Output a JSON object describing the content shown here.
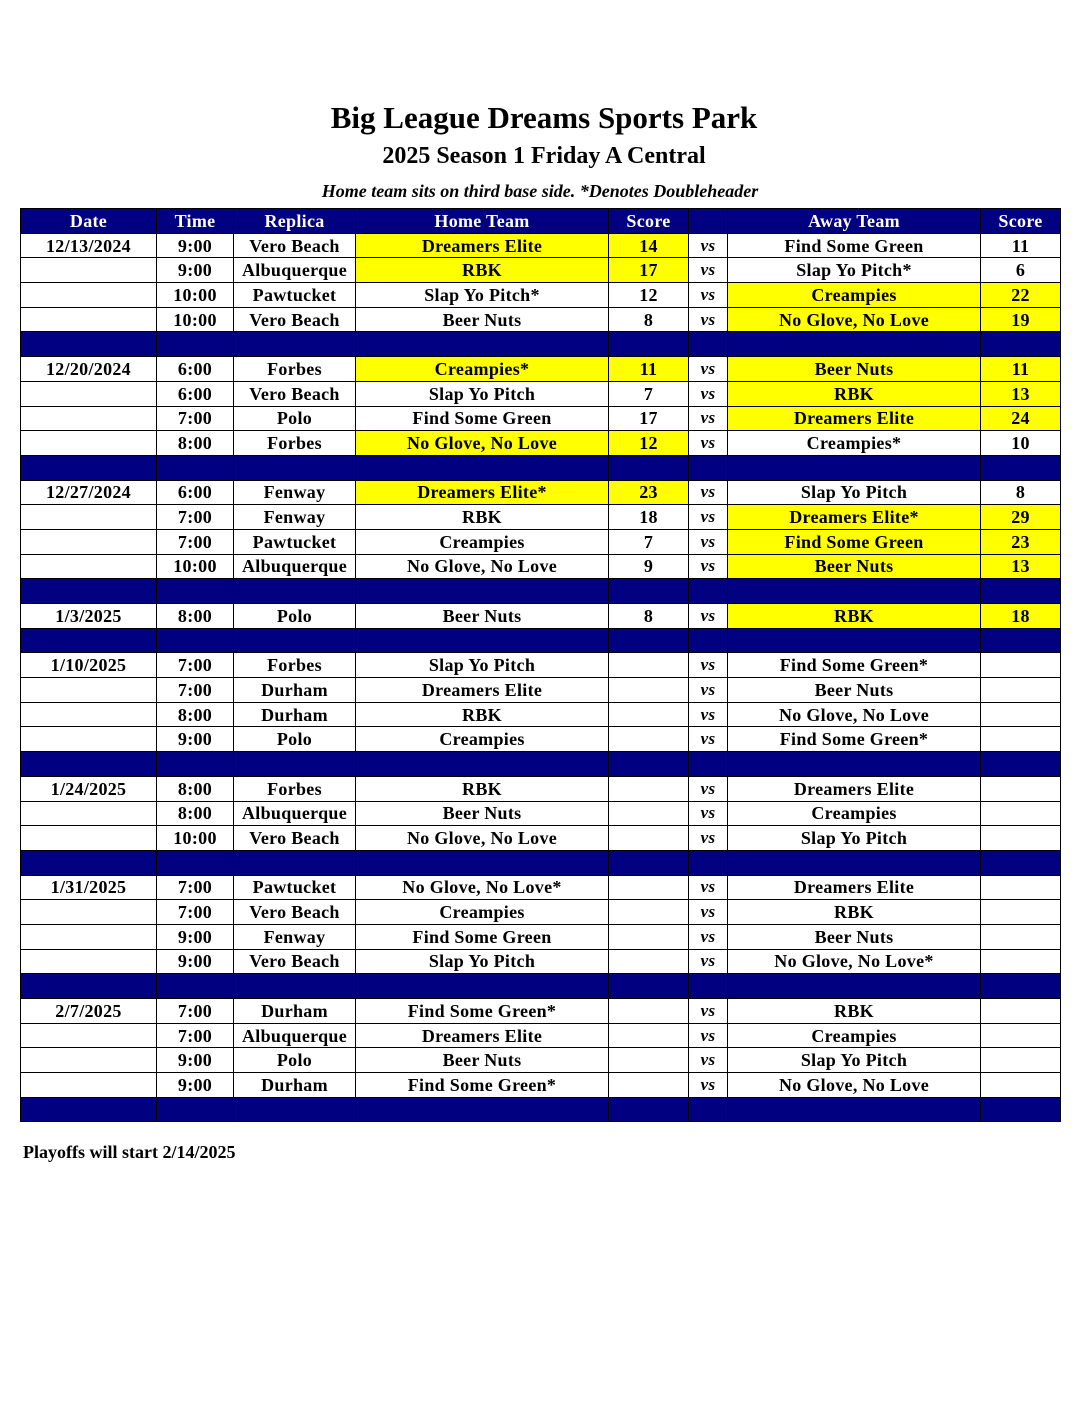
{
  "header": {
    "title": "Big League Dreams Sports Park",
    "subtitle": "2025 Season 1 Friday A Central",
    "note": "Home team sits on third base side.  *Denotes Doubleheader"
  },
  "columns": [
    "Date",
    "Time",
    "Replica",
    "Home Team",
    "Score",
    "",
    "Away Team",
    "Score"
  ],
  "vs_label": "vs",
  "colors": {
    "header_bg": "#000080",
    "winner_highlight": "#ffff00"
  },
  "rows": [
    {
      "date": "12/13/2024",
      "time": "9:00",
      "replica": "Vero Beach",
      "home": "Dreamers Elite",
      "home_score": "14",
      "away": "Find Some Green",
      "away_score": "11",
      "home_hl": true,
      "away_hl": false
    },
    {
      "date": "",
      "time": "9:00",
      "replica": "Albuquerque",
      "home": "RBK",
      "home_score": "17",
      "away": "Slap Yo Pitch*",
      "away_score": "6",
      "home_hl": true,
      "away_hl": false
    },
    {
      "date": "",
      "time": "10:00",
      "replica": "Pawtucket",
      "home": "Slap Yo Pitch*",
      "home_score": "12",
      "away": "Creampies",
      "away_score": "22",
      "home_hl": false,
      "away_hl": true
    },
    {
      "date": "",
      "time": "10:00",
      "replica": "Vero Beach",
      "home": "Beer Nuts",
      "home_score": "8",
      "away": "No Glove, No Love",
      "away_score": "19",
      "home_hl": false,
      "away_hl": true
    },
    {
      "sep": true
    },
    {
      "date": "12/20/2024",
      "time": "6:00",
      "replica": "Forbes",
      "home": "Creampies*",
      "home_score": "11",
      "away": "Beer Nuts",
      "away_score": "11",
      "home_hl": true,
      "away_hl": true
    },
    {
      "date": "",
      "time": "6:00",
      "replica": "Vero Beach",
      "home": "Slap Yo Pitch",
      "home_score": "7",
      "away": "RBK",
      "away_score": "13",
      "home_hl": false,
      "away_hl": true
    },
    {
      "date": "",
      "time": "7:00",
      "replica": "Polo",
      "home": "Find Some Green",
      "home_score": "17",
      "away": "Dreamers Elite",
      "away_score": "24",
      "home_hl": false,
      "away_hl": true
    },
    {
      "date": "",
      "time": "8:00",
      "replica": "Forbes",
      "home": "No Glove, No Love",
      "home_score": "12",
      "away": "Creampies*",
      "away_score": "10",
      "home_hl": true,
      "away_hl": false
    },
    {
      "sep": true
    },
    {
      "date": "12/27/2024",
      "time": "6:00",
      "replica": "Fenway",
      "home": "Dreamers Elite*",
      "home_score": "23",
      "away": "Slap Yo Pitch",
      "away_score": "8",
      "home_hl": true,
      "away_hl": false
    },
    {
      "date": "",
      "time": "7:00",
      "replica": "Fenway",
      "home": "RBK",
      "home_score": "18",
      "away": "Dreamers Elite*",
      "away_score": "29",
      "home_hl": false,
      "away_hl": true
    },
    {
      "date": "",
      "time": "7:00",
      "replica": "Pawtucket",
      "home": "Creampies",
      "home_score": "7",
      "away": "Find Some Green",
      "away_score": "23",
      "home_hl": false,
      "away_hl": true
    },
    {
      "date": "",
      "time": "10:00",
      "replica": "Albuquerque",
      "home": "No Glove, No Love",
      "home_score": "9",
      "away": "Beer Nuts",
      "away_score": "13",
      "home_hl": false,
      "away_hl": true
    },
    {
      "sep": true
    },
    {
      "date": "1/3/2025",
      "time": "8:00",
      "replica": "Polo",
      "home": "Beer Nuts",
      "home_score": "8",
      "away": "RBK",
      "away_score": "18",
      "home_hl": false,
      "away_hl": true
    },
    {
      "sep": true
    },
    {
      "date": "1/10/2025",
      "time": "7:00",
      "replica": "Forbes",
      "home": "Slap Yo Pitch",
      "home_score": "",
      "away": "Find Some Green*",
      "away_score": ""
    },
    {
      "date": "",
      "time": "7:00",
      "replica": "Durham",
      "home": "Dreamers Elite",
      "home_score": "",
      "away": "Beer Nuts",
      "away_score": ""
    },
    {
      "date": "",
      "time": "8:00",
      "replica": "Durham",
      "home": "RBK",
      "home_score": "",
      "away": "No Glove, No Love",
      "away_score": ""
    },
    {
      "date": "",
      "time": "9:00",
      "replica": "Polo",
      "home": "Creampies",
      "home_score": "",
      "away": "Find Some Green*",
      "away_score": ""
    },
    {
      "sep": true
    },
    {
      "date": "1/24/2025",
      "time": "8:00",
      "replica": "Forbes",
      "home": "RBK",
      "home_score": "",
      "away": "Dreamers Elite",
      "away_score": ""
    },
    {
      "date": "",
      "time": "8:00",
      "replica": "Albuquerque",
      "home": "Beer Nuts",
      "home_score": "",
      "away": "Creampies",
      "away_score": ""
    },
    {
      "date": "",
      "time": "10:00",
      "replica": "Vero Beach",
      "home": "No Glove, No Love",
      "home_score": "",
      "away": "Slap Yo Pitch",
      "away_score": ""
    },
    {
      "sep": true
    },
    {
      "date": "1/31/2025",
      "time": "7:00",
      "replica": "Pawtucket",
      "home": "No Glove, No Love*",
      "home_score": "",
      "away": "Dreamers Elite",
      "away_score": ""
    },
    {
      "date": "",
      "time": "7:00",
      "replica": "Vero Beach",
      "home": "Creampies",
      "home_score": "",
      "away": "RBK",
      "away_score": ""
    },
    {
      "date": "",
      "time": "9:00",
      "replica": "Fenway",
      "home": "Find Some Green",
      "home_score": "",
      "away": "Beer Nuts",
      "away_score": ""
    },
    {
      "date": "",
      "time": "9:00",
      "replica": "Vero Beach",
      "home": "Slap Yo Pitch",
      "home_score": "",
      "away": "No Glove, No Love*",
      "away_score": ""
    },
    {
      "sep": true
    },
    {
      "date": "2/7/2025",
      "time": "7:00",
      "replica": "Durham",
      "home": "Find Some Green*",
      "home_score": "",
      "away": "RBK",
      "away_score": ""
    },
    {
      "date": "",
      "time": "7:00",
      "replica": "Albuquerque",
      "home": "Dreamers Elite",
      "home_score": "",
      "away": "Creampies",
      "away_score": ""
    },
    {
      "date": "",
      "time": "9:00",
      "replica": "Polo",
      "home": "Beer Nuts",
      "home_score": "",
      "away": "Slap Yo Pitch",
      "away_score": ""
    },
    {
      "date": "",
      "time": "9:00",
      "replica": "Durham",
      "home": "Find Some Green*",
      "home_score": "",
      "away": "No Glove, No Love",
      "away_score": ""
    },
    {
      "sep": true
    }
  ],
  "footer": "Playoffs will start 2/14/2025"
}
